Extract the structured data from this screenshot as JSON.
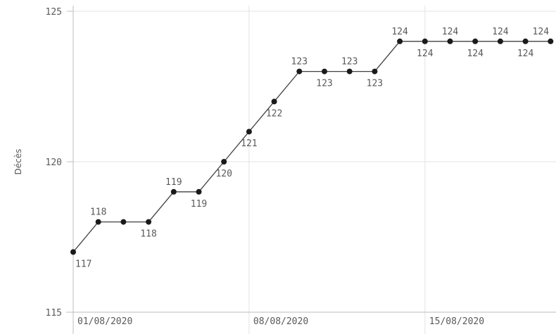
{
  "chart_data": {
    "type": "line",
    "xlabel": "",
    "ylabel": "Décès",
    "ylim": [
      115,
      125
    ],
    "y_ticks": [
      "115",
      "120",
      "125"
    ],
    "x_ticks": [
      {
        "index": 0,
        "label": "01/08/2020"
      },
      {
        "index": 7,
        "label": "08/08/2020"
      },
      {
        "index": 14,
        "label": "15/08/2020"
      }
    ],
    "x": [
      "01/08/2020",
      "02/08/2020",
      "03/08/2020",
      "04/08/2020",
      "05/08/2020",
      "06/08/2020",
      "07/08/2020",
      "08/08/2020",
      "09/08/2020",
      "10/08/2020",
      "11/08/2020",
      "12/08/2020",
      "13/08/2020",
      "14/08/2020",
      "15/08/2020",
      "16/08/2020",
      "17/08/2020",
      "18/08/2020",
      "19/08/2020",
      "20/08/2020"
    ],
    "values": [
      117,
      118,
      118,
      118,
      119,
      119,
      120,
      121,
      122,
      123,
      123,
      123,
      123,
      124,
      124,
      124,
      124,
      124,
      124,
      124
    ],
    "label_position": [
      "below",
      "above",
      "none",
      "below",
      "above",
      "below",
      "below",
      "below",
      "below",
      "above",
      "below",
      "above",
      "below",
      "above",
      "below",
      "above",
      "below",
      "above",
      "below",
      "above"
    ],
    "grid": true,
    "legend": "none",
    "colors": {
      "line": "#404040",
      "point": "#1a1a1a",
      "grid": "#e3e3e3",
      "axis": "#bdbdbd",
      "text": "#595959"
    }
  }
}
